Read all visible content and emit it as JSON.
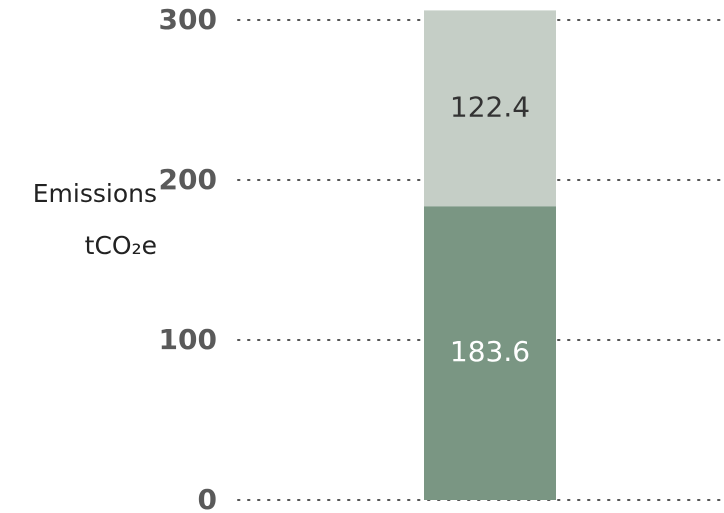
{
  "chart_data": {
    "type": "stacked_bar",
    "y_label": "Emissions tCO₂e",
    "categories": [
      null
    ],
    "series": [
      {
        "color": "#7a9683",
        "label_color": "#ffffff",
        "values": [
          183.6
        ]
      },
      {
        "color": "#c5cec6",
        "label_color": "#333333",
        "values": [
          122.4
        ]
      }
    ],
    "ylim": [
      0,
      300
    ],
    "yticks": [
      0,
      100,
      200,
      300
    ],
    "grid": true
  }
}
